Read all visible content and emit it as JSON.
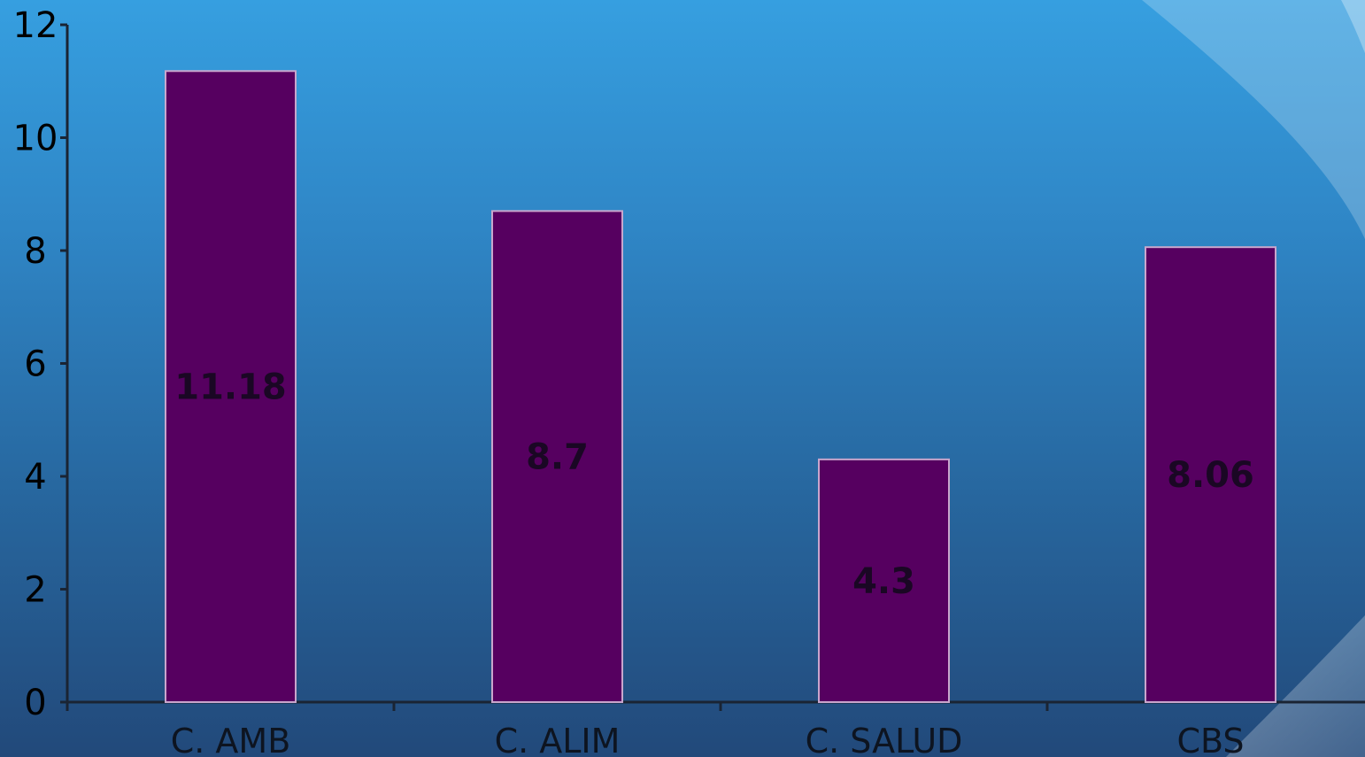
{
  "colors": {
    "bar_fill": "#560060",
    "bar_stroke": "#c9a6cc",
    "axis": "#1a2433"
  },
  "chart_data": {
    "type": "bar",
    "categories": [
      "C. AMB",
      "C. ALIM",
      "C. SALUD",
      "CBS"
    ],
    "values": [
      11.18,
      8.7,
      4.3,
      8.06
    ],
    "data_labels": [
      "11.18",
      "8.7",
      "4.3",
      "8.06"
    ],
    "title": "",
    "xlabel": "",
    "ylabel": "",
    "ylim": [
      0,
      12
    ],
    "yticks": [
      0,
      2,
      4,
      6,
      8,
      10,
      12
    ],
    "ytick_labels": [
      "0",
      "2",
      "4",
      "6",
      "8",
      "10",
      "12"
    ],
    "grid": false,
    "legend": "none"
  }
}
